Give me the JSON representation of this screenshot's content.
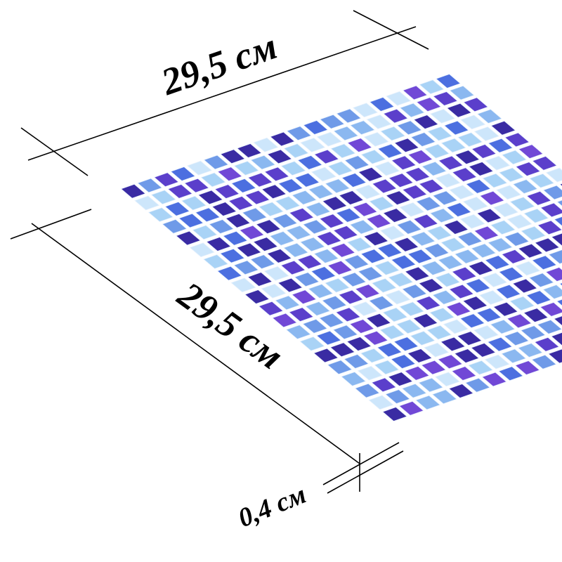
{
  "dimensions": {
    "width": "29,5 см",
    "length": "29,5 см",
    "thickness": "0,4 см"
  }
}
